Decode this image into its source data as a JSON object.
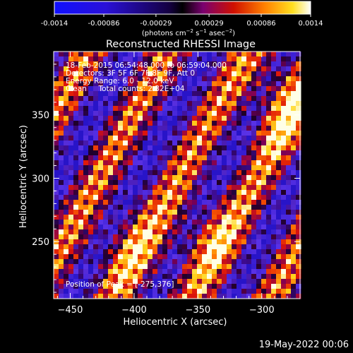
{
  "colorbar": {
    "ticks": [
      "-0.0014",
      "-0.00086",
      "-0.00029",
      "0.00029",
      "0.00086",
      "0.0014"
    ],
    "tick_values": [
      -0.0014,
      -0.00086,
      -0.00029,
      0.00029,
      0.00086,
      0.0014
    ],
    "unit_prefix": "(photons cm",
    "unit_exp1": "−2",
    "unit_mid": " s",
    "unit_exp2": "−1",
    "unit_mid2": " asec",
    "unit_exp3": "−2",
    "unit_suffix": ")",
    "range": [
      -0.0014,
      0.0014
    ],
    "colors": [
      "#1010ff",
      "#2020c0",
      "#000000",
      "#8a00a0",
      "#ff2000",
      "#ff9000",
      "#ffff20",
      "#ffffff"
    ]
  },
  "chart_data": {
    "type": "heatmap",
    "title": "Reconstructed RHESSI Image",
    "xlabel": "Heliocentric X (arcsec)",
    "ylabel": "Heliocentric Y (arcsec)",
    "xlim": [
      -463,
      -270
    ],
    "ylim": [
      205,
      400
    ],
    "xticks": [
      -450,
      -400,
      -350,
      -300
    ],
    "yticks": [
      250,
      300,
      350
    ],
    "peak_position": [
      -275,
      376
    ],
    "pattern": "diagonal fringes"
  },
  "info": {
    "line1": "18-Feb-2015 06:54:48.000 to 06:59:04.000",
    "line2": "Detectors: 3F 5F 6F 7F 8F 9F, Att 0",
    "line3": "Energy Range: 6.0 - 12.0 keV",
    "line4": "Clean     Total counts: 2.32E+04",
    "peak": "Position of Peak = [-275,376]"
  },
  "footer": "19-May-2022 00:06"
}
